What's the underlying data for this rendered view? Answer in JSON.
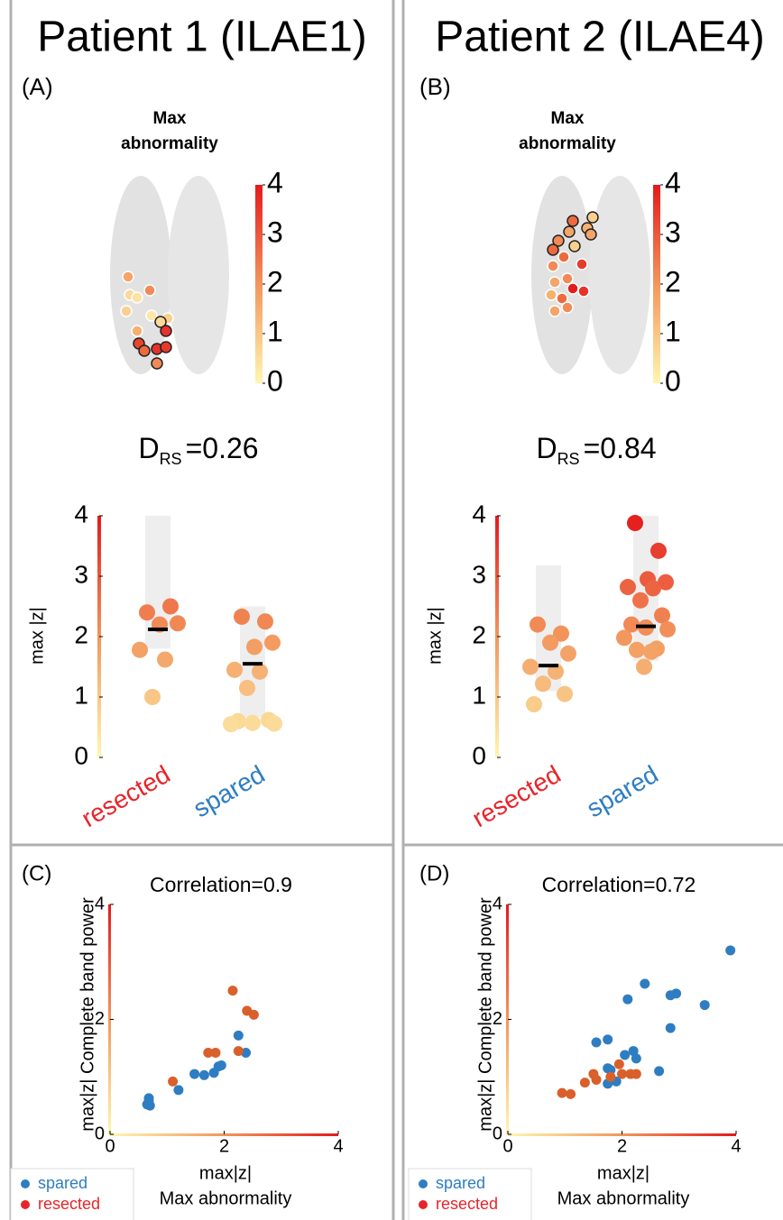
{
  "chart_data": [
    {
      "type": "strip",
      "header": "Patient 1 (ILAE1)",
      "panel": "(A)",
      "map_title": "Max abnormality",
      "clim": [
        0,
        4
      ],
      "cticks": [
        0,
        1,
        2,
        3,
        4
      ],
      "stat_symbol": "D",
      "stat_subscript": "RS",
      "stat_text": "=0.26",
      "ylabel": "max |z|",
      "ylim": [
        0,
        4
      ],
      "yticks": [
        0,
        1,
        2,
        3,
        4
      ],
      "categories": [
        "resected",
        "spared"
      ],
      "category_colors": [
        "#e8242a",
        "#2e7dc2"
      ],
      "values": [
        [
          2.4,
          2.5,
          2.2,
          2.22,
          1.78,
          1.62,
          1.0
        ],
        [
          2.33,
          2.25,
          1.83,
          1.9,
          1.45,
          1.42,
          1.15,
          0.62,
          0.6,
          0.57,
          0.56,
          0.55
        ]
      ],
      "medians": [
        2.12,
        1.55
      ],
      "ranges": [
        [
          1.8,
          4.0
        ],
        [
          0.67,
          2.5
        ]
      ],
      "colormap": [
        "#fff6b0",
        "#f2965c",
        "#e41a1c"
      ]
    },
    {
      "type": "strip",
      "header": "Patient 2 (ILAE4)",
      "panel": "(B)",
      "map_title": "Max abnormality",
      "clim": [
        0,
        4
      ],
      "cticks": [
        0,
        1,
        2,
        3,
        4
      ],
      "stat_symbol": "D",
      "stat_subscript": "RS",
      "stat_text": "=0.84",
      "ylabel": "max |z|",
      "ylim": [
        0,
        4
      ],
      "yticks": [
        0,
        1,
        2,
        3,
        4
      ],
      "categories": [
        "resected",
        "spared"
      ],
      "category_colors": [
        "#e8242a",
        "#2e7dc2"
      ],
      "values": [
        [
          2.2,
          2.05,
          1.9,
          1.72,
          1.5,
          1.42,
          1.22,
          1.05,
          0.88
        ],
        [
          3.88,
          3.42,
          2.95,
          2.9,
          2.82,
          2.8,
          2.6,
          2.35,
          2.2,
          2.15,
          2.12,
          1.98,
          1.8,
          1.78,
          1.75,
          1.5
        ]
      ],
      "medians": [
        1.52,
        2.17
      ],
      "ranges": [
        [
          1.1,
          3.18
        ],
        [
          1.6,
          4.0
        ]
      ],
      "colormap": [
        "#fff6b0",
        "#f2965c",
        "#e41a1c"
      ]
    },
    {
      "type": "scatter",
      "panel": "(C)",
      "title": "Correlation=0.9",
      "xlabel": "max|z|",
      "xlabel2": "Max abnormality",
      "ylabel": "max|z| Complete band power",
      "xlim": [
        0,
        4
      ],
      "ylim": [
        0,
        4
      ],
      "xticks": [
        0,
        2,
        4
      ],
      "yticks": [
        0,
        2,
        4
      ],
      "legend": "lower left",
      "colormap": [
        "#fff6b0",
        "#f2965c",
        "#e41a1c"
      ],
      "series": [
        {
          "name": "spared",
          "color": "#2e7dc2",
          "legend_color": "#2e7dc2",
          "label_color": "#2e7dc2",
          "x": [
            0.68,
            0.68,
            0.7,
            0.65,
            1.2,
            1.48,
            1.65,
            1.82,
            1.9,
            1.95,
            2.25,
            2.38
          ],
          "y": [
            0.63,
            0.58,
            0.5,
            0.52,
            0.77,
            1.05,
            1.03,
            1.07,
            1.18,
            1.2,
            1.72,
            1.42
          ]
        },
        {
          "name": "resected",
          "color": "#d95f2b",
          "legend_color": "#e8242a",
          "label_color": "#e8242a",
          "x": [
            1.1,
            1.72,
            1.85,
            2.15,
            2.25,
            2.4,
            2.52
          ],
          "y": [
            0.92,
            1.42,
            1.42,
            2.5,
            1.45,
            2.15,
            2.08
          ]
        }
      ]
    },
    {
      "type": "scatter",
      "panel": "(D)",
      "title": "Correlation=0.72",
      "xlabel": "max|z|",
      "xlabel2": "Max abnormality",
      "ylabel": "max|z| Complete band power",
      "xlim": [
        0,
        4
      ],
      "ylim": [
        0,
        4
      ],
      "xticks": [
        0,
        2,
        4
      ],
      "yticks": [
        0,
        2,
        4
      ],
      "legend": "lower left",
      "colormap": [
        "#fff6b0",
        "#f2965c",
        "#e41a1c"
      ],
      "series": [
        {
          "name": "spared",
          "color": "#2e7dc2",
          "legend_color": "#2e7dc2",
          "label_color": "#2e7dc2",
          "x": [
            3.9,
            2.4,
            2.95,
            2.85,
            2.1,
            3.45,
            2.85,
            1.55,
            1.75,
            2.2,
            2.05,
            2.25,
            1.75,
            1.8,
            2.65,
            1.9,
            1.75
          ],
          "y": [
            3.2,
            2.62,
            2.45,
            2.42,
            2.35,
            2.25,
            1.85,
            1.6,
            1.65,
            1.45,
            1.38,
            1.32,
            1.15,
            1.12,
            1.1,
            0.92,
            0.88
          ]
        },
        {
          "name": "resected",
          "color": "#d95f2b",
          "legend_color": "#e8242a",
          "label_color": "#e8242a",
          "x": [
            0.95,
            1.1,
            1.35,
            1.5,
            1.55,
            1.8,
            1.95,
            2.0,
            2.15,
            2.25
          ],
          "y": [
            0.72,
            0.7,
            0.9,
            1.05,
            0.95,
            1.0,
            1.22,
            1.05,
            1.05,
            1.05
          ]
        }
      ]
    }
  ]
}
